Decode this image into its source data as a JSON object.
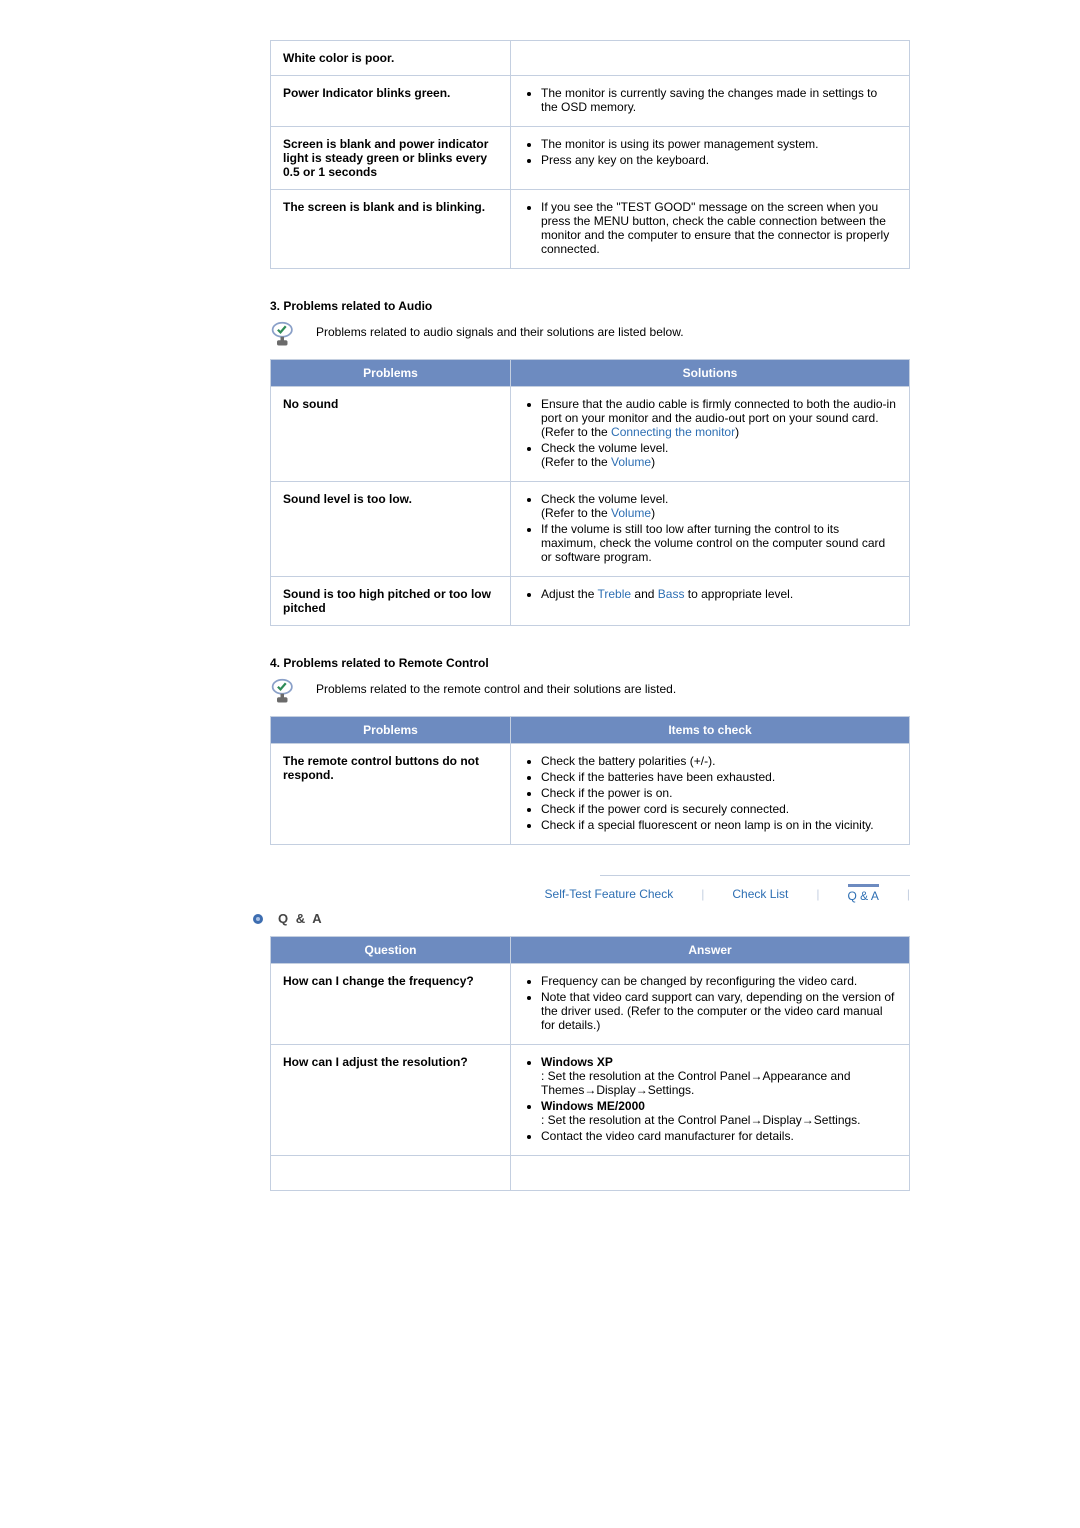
{
  "section2_rows": [
    {
      "problem": "White color is poor.",
      "solutions": []
    },
    {
      "problem": "Power Indicator blinks green.",
      "solutions": [
        "The monitor is currently saving the changes made in settings to the OSD memory."
      ]
    },
    {
      "problem": "Screen is blank and power indicator light is steady green or blinks every 0.5 or 1 seconds",
      "solutions": [
        "The monitor is using its power management system.",
        "Press any key on the keyboard."
      ]
    },
    {
      "problem": "The screen is blank and is blinking.",
      "solutions": [
        "If you see the \"TEST GOOD\" message on the screen when you press the MENU button, check the cable connection between the monitor and the computer to ensure that the connector is properly connected."
      ]
    }
  ],
  "section3": {
    "title": "3. Problems related to Audio",
    "intro": "Problems related to audio signals and their solutions are listed below.",
    "headers": [
      "Problems",
      "Solutions"
    ],
    "rows": [
      {
        "problem": "No sound",
        "solutions_html": "<ul><li>Ensure that the audio cable is firmly connected to both the audio-in port on your monitor and the audio-out port on your sound card.<br>(Refer to the <a class='link' href='#'>Connecting the monitor</a>)</li><li>Check the volume level.<br>(Refer to the <a class='link' href='#'>Volume</a>)</li></ul>"
      },
      {
        "problem": "Sound level is too low.",
        "solutions_html": "<ul><li>Check the volume level.<br>(Refer to the <a class='link' href='#'>Volume</a>)</li><li>If the volume is still too low after turning the control to its maximum, check the volume control on the computer sound card or software program.</li></ul>"
      },
      {
        "problem": "Sound is too high pitched or too low pitched",
        "solutions_html": "<ul><li>Adjust the <a class='link' href='#'>Treble</a> and <a class='link' href='#'>Bass</a> to appropriate level.</li></ul>"
      }
    ]
  },
  "section4": {
    "title": "4. Problems related to Remote Control",
    "intro": "Problems related to the remote control and their solutions are listed.",
    "headers": [
      "Problems",
      "Items to check"
    ],
    "rows": [
      {
        "problem": "The remote control buttons do not respond.",
        "solutions_html": "<ul><li>Check the battery polarities (+/-).</li><li>Check if the batteries have been exhausted.</li><li>Check if the power is on.</li><li>Check if the power cord is securely connected.</li><li>Check if a special fluorescent or neon lamp is on in the vicinity.</li></ul>"
      }
    ]
  },
  "tabs": {
    "t1": "Self-Test Feature Check",
    "t2": "Check List",
    "t3": "Q  &  A"
  },
  "qa": {
    "heading": "Q  &  A",
    "headers": [
      "Question",
      "Answer"
    ],
    "rows": [
      {
        "q": "How can I change the frequency?",
        "a_html": "<ul><li>Frequency can be changed by reconfiguring the video card.</li><li>Note that video card support can vary, depending on the version of the driver used. (Refer to the computer or the video card manual for details.)</li></ul>"
      },
      {
        "q": "How can I adjust the resolution?",
        "a_html": "<ul><li><b>Windows XP</b><br>: Set the resolution at the Control Panel→Appearance and Themes→Display→Settings.</li><li><b>Windows ME/2000</b><br>: Set the resolution at the Control Panel→Display→Settings.</li><li>Contact the video card manufacturer for details.</li></ul>"
      }
    ]
  }
}
